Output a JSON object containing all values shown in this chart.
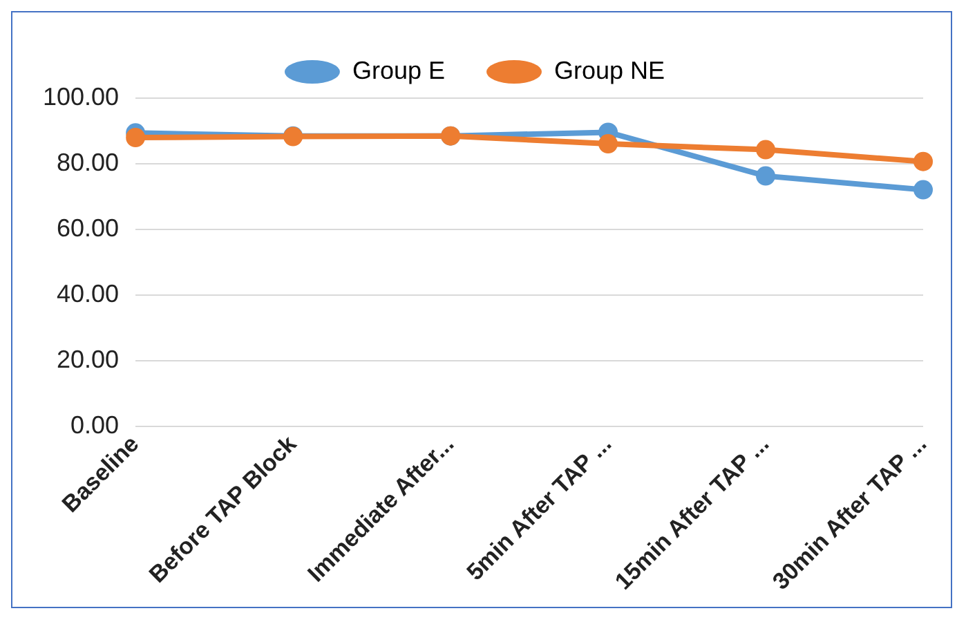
{
  "chart_data": {
    "type": "line",
    "categories": [
      "Baseline",
      "Before TAP Block",
      "Immediate After...",
      "5min After TAP ...",
      "15min After TAP ...",
      "30min After TAP ..."
    ],
    "series": [
      {
        "name": "Group E",
        "color": "#5b9bd5",
        "values": [
          89.4,
          88.5,
          88.5,
          89.6,
          76.3,
          72.1
        ]
      },
      {
        "name": "Group NE",
        "color": "#ed7d31",
        "values": [
          88.0,
          88.3,
          88.5,
          86.1,
          84.3,
          80.7
        ]
      }
    ],
    "ylim": [
      0,
      100
    ],
    "yticks": [
      {
        "value": 0,
        "label": "0.00"
      },
      {
        "value": 20,
        "label": "20.00"
      },
      {
        "value": 40,
        "label": "40.00"
      },
      {
        "value": 60,
        "label": "60.00"
      },
      {
        "value": 80,
        "label": "80.00"
      },
      {
        "value": 100,
        "label": "100.00"
      }
    ],
    "grid": "y",
    "legend": "top",
    "marker": "circle",
    "line_style": "solid"
  }
}
